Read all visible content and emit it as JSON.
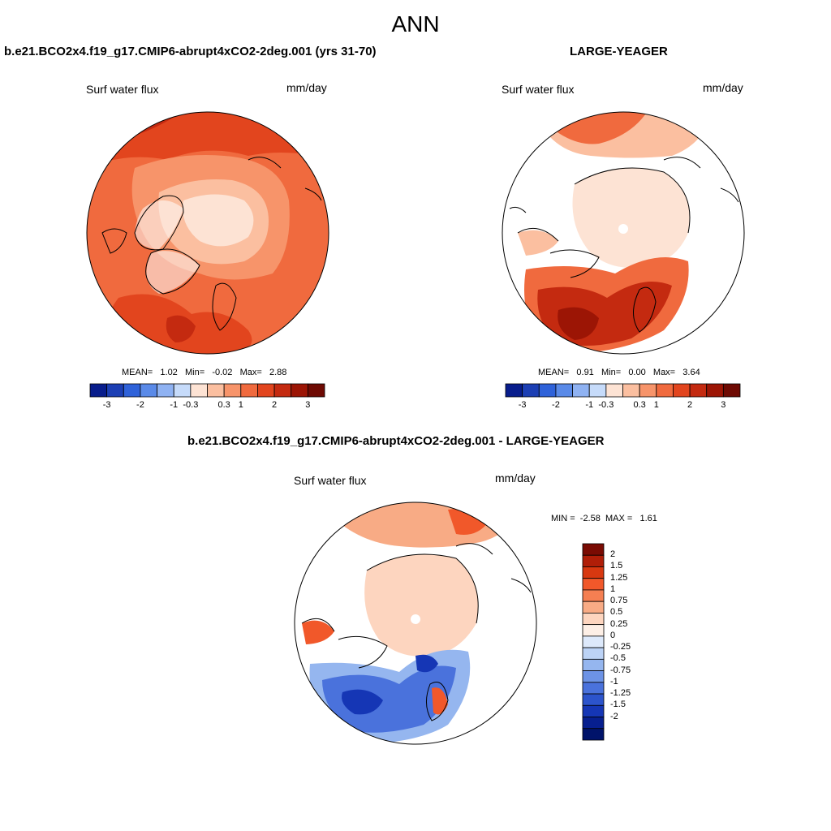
{
  "figure": {
    "title": "ANN"
  },
  "panels": [
    {
      "id": "test",
      "title": "b.e21.BCO2x4.f19_g17.CMIP6-abrupt4xCO2-2deg.001 (yrs 31-70)",
      "variable": "Surf water flux",
      "units": "mm/day",
      "stats": {
        "mean_label": "MEAN=",
        "mean": "1.02",
        "min_label": "Min=",
        "min": "-0.02",
        "max_label": "Max=",
        "max": "2.88"
      }
    },
    {
      "id": "obs",
      "title": "LARGE-YEAGER",
      "variable": "Surf water flux",
      "units": "mm/day",
      "stats": {
        "mean_label": "MEAN=",
        "mean": "0.91",
        "min_label": "Min=",
        "min": "0.00",
        "max_label": "Max=",
        "max": "3.64"
      }
    },
    {
      "id": "diff",
      "title": "b.e21.BCO2x4.f19_g17.CMIP6-abrupt4xCO2-2deg.001 - LARGE-YEAGER",
      "variable": "Surf water flux",
      "units": "mm/day",
      "stats": {
        "min_label": "MIN =",
        "min": "-2.58",
        "max_label": "MAX =",
        "max": "1.61"
      }
    }
  ],
  "colorbar_main": {
    "colors": [
      "#081d8c",
      "#1c3fb4",
      "#2f62d9",
      "#5a8ae8",
      "#8fb2f2",
      "#c6dbfa",
      "#fde3d4",
      "#fbbfa0",
      "#f7946a",
      "#f06a3e",
      "#e2451e",
      "#c42a10",
      "#9c1505",
      "#6e0a03"
    ],
    "tick_labels": [
      "-3",
      "-2",
      "-1",
      "-0.3",
      "0.3",
      "1",
      "2",
      "3"
    ]
  },
  "colorbar_diff": {
    "colors": [
      "#7a0b03",
      "#b01e08",
      "#d83810",
      "#f1582a",
      "#f57f52",
      "#f8ab85",
      "#fdd5bf",
      "#fdefe6",
      "#dde9fb",
      "#bcd3f6",
      "#95b6ef",
      "#6d93e6",
      "#4a72dc",
      "#2c54cc",
      "#1536b5",
      "#071f8f",
      "#00136a"
    ],
    "labels": [
      "2",
      "1.5",
      "1.25",
      "1",
      "0.75",
      "0.5",
      "0.25",
      "0",
      "-0.25",
      "-0.5",
      "-0.75",
      "-1",
      "-1.25",
      "-1.5",
      "-2"
    ]
  },
  "map_colors": {
    "p1_base": "#f06a3e",
    "p1_mid": "#f7946a",
    "p1_light": "#fbbfa0",
    "p1_lightest": "#fde3d4",
    "p1_dark": "#e2451e",
    "p1_darkest": "#c42a10",
    "p2_light": "#fde3d4",
    "p2_mid": "#fbbfa0",
    "p2_base": "#f06a3e",
    "p2_dark": "#c42a10",
    "p2_darkest": "#9c1505",
    "p3_light": "#fdd5bf",
    "p3_mid": "#f8ab85",
    "p3_base": "#f1582a",
    "p3_blue_light": "#95b6ef",
    "p3_blue": "#4a72dc",
    "p3_blue_dark": "#1536b5",
    "land": "#ffffff"
  }
}
